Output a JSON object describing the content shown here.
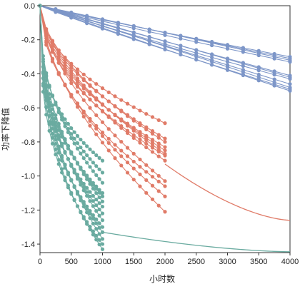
{
  "chart_data": {
    "type": "line",
    "title": "",
    "xlabel": "小时数",
    "ylabel": "功率下降值",
    "xlim": [
      0,
      4000
    ],
    "ylim": [
      -1.45,
      0
    ],
    "x_ticks": [
      0,
      500,
      1000,
      1500,
      2000,
      2500,
      3000,
      3500,
      4000
    ],
    "y_ticks": [
      0.0,
      -0.2,
      -0.4,
      -0.6,
      -0.8,
      -1.0,
      -1.2,
      -1.4
    ],
    "x_tick_labels": [
      "0",
      "500",
      "1000",
      "1500",
      "2000",
      "2500",
      "3000",
      "3500",
      "4000"
    ],
    "y_tick_labels": [
      "0.0",
      "-0.2",
      "-0.4",
      "-0.6",
      "-0.8",
      "-1.0",
      "-1.2",
      "-1.4"
    ],
    "grid": false,
    "legend": "none",
    "series_colors": {
      "blue": "#7d96c8",
      "red": "#e07b68",
      "teal": "#6aaba0"
    },
    "groups": [
      {
        "color": "blue",
        "x": [
          0,
          250,
          500,
          750,
          1000,
          1250,
          1500,
          1750,
          2000,
          2250,
          2500,
          2750,
          3000,
          3250,
          3500,
          3750,
          4000
        ],
        "final_values": [
          -0.3,
          -0.31,
          -0.32,
          -0.33,
          -0.41,
          -0.42,
          -0.43,
          -0.46,
          -0.48,
          -0.49,
          -0.5
        ]
      },
      {
        "color": "red",
        "x": [
          0,
          100,
          200,
          300,
          400,
          500,
          600,
          700,
          800,
          900,
          1000,
          1100,
          1200,
          1300,
          1400,
          1500,
          1600,
          1700,
          1800,
          1900,
          2000
        ],
        "final_values": [
          -0.69,
          -0.78,
          -0.8,
          -0.83,
          -0.85,
          -0.87,
          -0.88,
          -0.91,
          -1.03,
          -1.06,
          -1.12,
          -1.21
        ]
      },
      {
        "color": "teal",
        "x": [
          0,
          50,
          100,
          150,
          200,
          250,
          300,
          350,
          400,
          450,
          500,
          550,
          600,
          650,
          700,
          750,
          800,
          850,
          900,
          950,
          1000
        ],
        "final_values": [
          -0.91,
          -0.98,
          -1.04,
          -1.1,
          -1.12,
          -1.15,
          -1.18,
          -1.22,
          -1.26,
          -1.3,
          -1.33,
          -1.37,
          -1.4,
          -1.43
        ]
      }
    ],
    "fitted_curves": [
      {
        "color": "red",
        "x_start": 2000,
        "x_end": 4000,
        "y_start": -0.93,
        "y_end": -1.26
      },
      {
        "color": "teal",
        "x_start": 1000,
        "x_end": 4000,
        "y_start": -1.33,
        "y_end": -1.445
      }
    ]
  }
}
